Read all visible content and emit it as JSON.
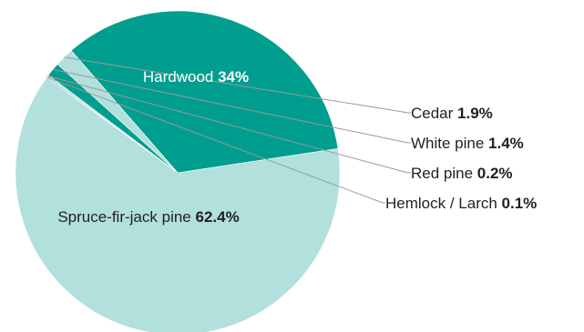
{
  "chart_data": {
    "type": "pie",
    "title": "",
    "start_angle_deg": 8.6,
    "direction": "counterclockwise",
    "slices": [
      {
        "label": "Hardwood",
        "value": 34,
        "value_label": "34%",
        "color": "#009e8e",
        "label_placement": "inside",
        "label_style": "light"
      },
      {
        "label": "Cedar",
        "value": 1.9,
        "value_label": "1.9%",
        "color": "#b2e0dc",
        "label_placement": "callout",
        "label_style": "dark"
      },
      {
        "label": "White pine",
        "value": 1.4,
        "value_label": "1.4%",
        "color": "#009e8e",
        "label_placement": "callout",
        "label_style": "dark"
      },
      {
        "label": "Red pine",
        "value": 0.2,
        "value_label": "0.2%",
        "color": "#b2e0dc",
        "label_placement": "callout",
        "label_style": "dark"
      },
      {
        "label": "Hemlock / Larch",
        "value": 0.1,
        "value_label": "0.1%",
        "color": "#009e8e",
        "label_placement": "callout",
        "label_style": "dark"
      },
      {
        "label": "Spruce-fir-jack pine",
        "value": 62.4,
        "value_label": "62.4%",
        "color": "#b2e0dc",
        "label_placement": "inside",
        "label_style": "dark"
      }
    ]
  }
}
